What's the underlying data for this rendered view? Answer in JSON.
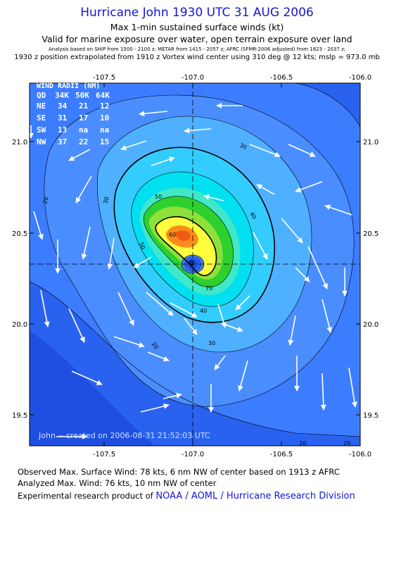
{
  "header": {
    "title": "Hurricane John 1930 UTC 31 AUG 2006",
    "subtitle1": "Max 1-min sustained surface winds (kt)",
    "subtitle2": "Valid for marine exposure over water, open terrain exposure over land",
    "analysis_note": "Analysis based on  SHIP from 1500 - 2100 z;  METAR from 1415 - 2057 z;  AFRC (SFMR-2006 adjusted) from 1823 - 2037 z;",
    "position_note": "1930 z position extrapolated from 1910 z Vortex wind center using 310 deg @ 12 kts; mslp = 973.0 mb"
  },
  "map": {
    "lon_ticks": [
      "-107.5",
      "-107.0",
      "-106.5",
      "-106.0"
    ],
    "lat_ticks": [
      "21.0",
      "20.5",
      "20.0",
      "19.5"
    ],
    "contour_labels": [
      "20",
      "30",
      "40",
      "50",
      "60",
      "70",
      "20",
      "30",
      "40",
      "50",
      "20",
      "20",
      "30"
    ],
    "watermark": "John -- created on 2006-08-31 21:52:03 UTC"
  },
  "wind_radii": {
    "title": "WIND RADII (NM)",
    "header": [
      "QD",
      "34K",
      "50K",
      "64K"
    ],
    "rows": [
      [
        "NE",
        "34",
        "21",
        "12"
      ],
      [
        "SE",
        "31",
        "17",
        "10"
      ],
      [
        "SW",
        "13",
        "na",
        "na"
      ],
      [
        "NW",
        "37",
        "22",
        "15"
      ]
    ]
  },
  "footer": {
    "observed": "Observed Max. Surface Wind: 78 kts, 6 nm NW of center based on 1913 z AFRC",
    "analyzed": "Analyzed Max. Wind: 76 kts, 10 nm NW of center",
    "product_prefix": "Experimental research product of",
    "product_link": "NOAA / AOML / Hurricane Research Division"
  },
  "colors": {
    "title": "#1515d8",
    "deep_blue": "#2255e8",
    "blue": "#3c7dff",
    "cyan": "#00e0ff",
    "green": "#2ed02e",
    "yellow": "#ffff3c",
    "orange": "#ff8c1a"
  }
}
